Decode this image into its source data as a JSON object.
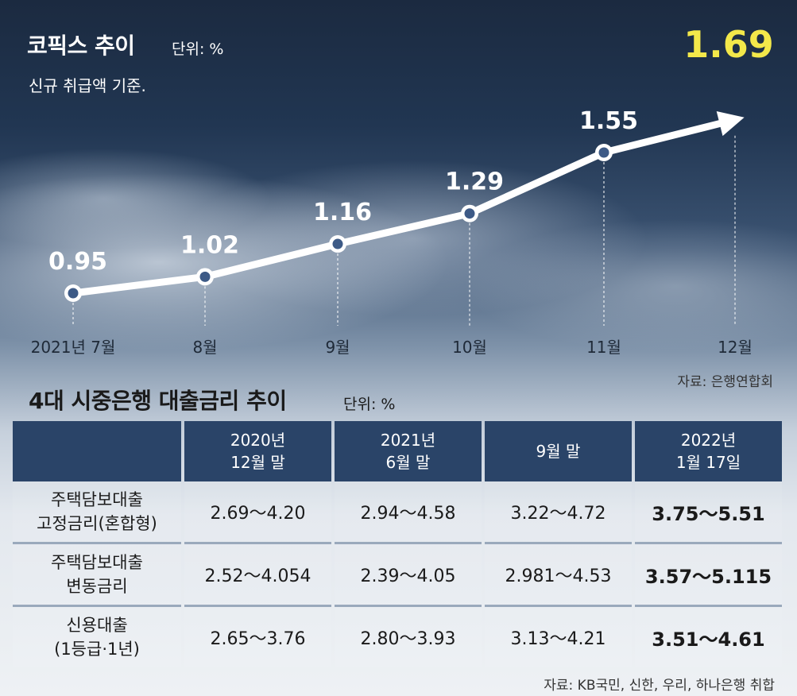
{
  "chart_data": {
    "type": "line",
    "title": "코픽스 추이",
    "unit": "단위: %",
    "subtitle": "신규 취급액 기준.",
    "categories": [
      "2021년 7월",
      "8월",
      "9월",
      "10월",
      "11월",
      "12월"
    ],
    "values": [
      0.95,
      1.02,
      1.16,
      1.29,
      1.55,
      1.69
    ],
    "value_labels": [
      "0.95",
      "1.02",
      "1.16",
      "1.29",
      "1.55",
      "1.69"
    ],
    "last_point_style": "arrow",
    "highlight_color": "#f3e84a",
    "line_color": "#ffffff",
    "marker_color": "#3d5a86",
    "grid": false,
    "source": "자료: 은행연합회"
  },
  "table": {
    "title": "4대 시중은행 대출금리 추이",
    "unit": "단위: %",
    "header_color": "#2a4468",
    "columns": [
      [
        "2020년",
        "12월 말"
      ],
      [
        "2021년",
        "6월 말"
      ],
      [
        "9월 말"
      ],
      [
        "2022년",
        "1월 17일"
      ]
    ],
    "rows": [
      {
        "label": [
          "주택담보대출",
          "고정금리(혼합형)"
        ],
        "values": [
          "2.69～4.20",
          "2.94～4.58",
          "3.22～4.72",
          "3.75～5.51"
        ]
      },
      {
        "label": [
          "주택담보대출",
          "변동금리"
        ],
        "values": [
          "2.52～4.054",
          "2.39～4.05",
          "2.981～4.53",
          "3.57～5.115"
        ]
      },
      {
        "label": [
          "신용대출",
          "(1등급·1년)"
        ],
        "values": [
          "2.65～3.76",
          "2.80～3.93",
          "3.13～4.21",
          "3.51～4.61"
        ]
      }
    ],
    "source": "자료: KB국민, 신한, 우리, 하나은행 취합"
  }
}
